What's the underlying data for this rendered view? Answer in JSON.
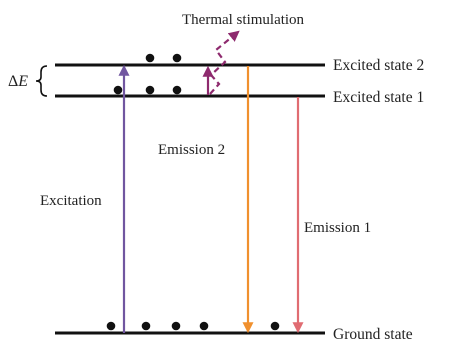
{
  "diagram": {
    "energy_levels": {
      "excited_state_2": "Excited state 2",
      "excited_state_1": "Excited state 1",
      "ground_state": "Ground state"
    },
    "energy_gap": {
      "symbol": "Δ",
      "variable": "E"
    },
    "transitions": {
      "excitation": "Excitation",
      "emission_1": "Emission 1",
      "emission_2": "Emission 2",
      "thermal_stimulation": "Thermal stimulation"
    },
    "colors": {
      "level_line": "#111111",
      "excitation_arrow": "#7156a0",
      "emission_2_arrow": "#f0902e",
      "emission_1_arrow": "#e06c72",
      "thermal_arrow": "#8e2a6e",
      "electron": "#111111"
    }
  }
}
